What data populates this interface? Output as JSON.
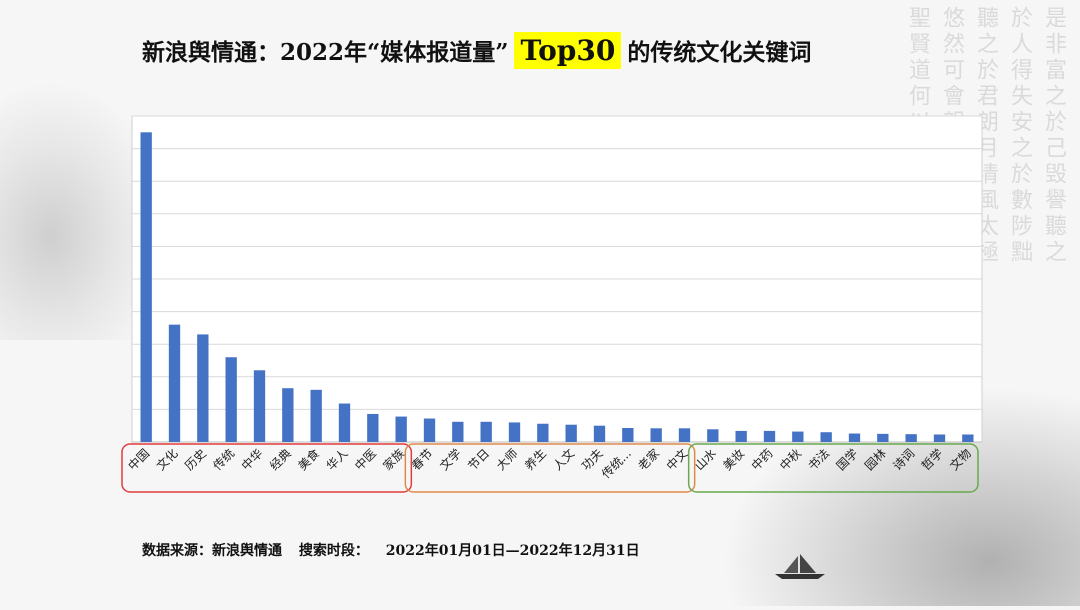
{
  "title": {
    "prefix": "新浪舆情通：2022年“媒体报道量”",
    "highlight": "Top30",
    "suffix": "的传统文化关键词"
  },
  "footer": {
    "source_label": "数据来源：新浪舆情通",
    "period_label": "搜索时段：",
    "period_value": "2022年01月01日—2022年12月31日"
  },
  "calligraphy_text": "是非富之於己毁譽聽之於人得失安之於數陟黜聽之於君朗月清風太極悠然可會親恩何以報立聖賢道何以養",
  "chart_data": {
    "type": "bar",
    "title": "2022年“媒体报道量”Top30的传统文化关键词",
    "xlabel": "",
    "ylabel": "",
    "ylim": [
      0,
      100
    ],
    "grid": true,
    "bar_color": "#4472c4",
    "categories": [
      "中国",
      "文化",
      "历史",
      "传统",
      "中华",
      "经典",
      "美食",
      "华人",
      "中医",
      "家族",
      "春节",
      "文学",
      "节日",
      "大师",
      "养生",
      "人文",
      "功夫",
      "传统...",
      "老家",
      "中文",
      "山水",
      "美妆",
      "中药",
      "中秋",
      "书法",
      "国学",
      "园林",
      "诗词",
      "哲学",
      "文物"
    ],
    "values": [
      95,
      36,
      33,
      26,
      22,
      16.5,
      16,
      11.8,
      8.6,
      7.8,
      7.2,
      6.2,
      6.2,
      6.0,
      5.6,
      5.3,
      5.0,
      4.3,
      4.2,
      4.2,
      3.9,
      3.4,
      3.4,
      3.2,
      3.0,
      2.6,
      2.5,
      2.4,
      2.3,
      2.3
    ],
    "groups": [
      {
        "name": "group-1",
        "from": 0,
        "to": 9,
        "color": "#e03c3c"
      },
      {
        "name": "group-2",
        "from": 10,
        "to": 19,
        "color": "#e08a4a"
      },
      {
        "name": "group-3",
        "from": 20,
        "to": 29,
        "color": "#6aa84f"
      }
    ]
  }
}
